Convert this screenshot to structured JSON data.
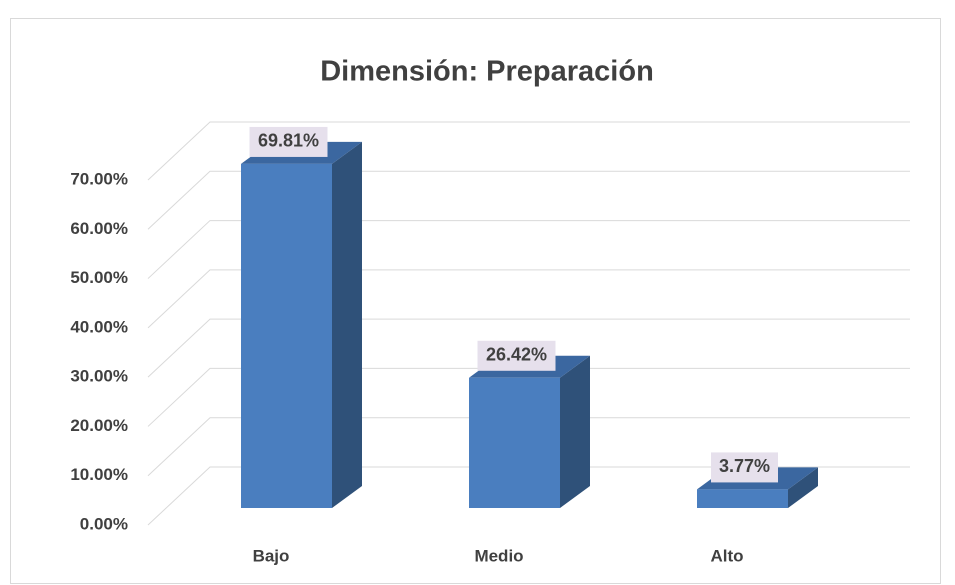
{
  "chart_data": {
    "type": "bar3d",
    "title": "Dimensión: Preparación",
    "categories": [
      "Bajo",
      "Medio",
      "Alto"
    ],
    "values": [
      69.81,
      26.42,
      3.77
    ],
    "value_labels": [
      "69.81%",
      "26.42%",
      "3.77%"
    ],
    "color": "#4a7ebf",
    "ylim": [
      0,
      70
    ],
    "yticks": [
      {
        "value": 0,
        "label": "0.00%"
      },
      {
        "value": 10,
        "label": "10.00%"
      },
      {
        "value": 20,
        "label": "20.00%"
      },
      {
        "value": 30,
        "label": "30.00%"
      },
      {
        "value": 40,
        "label": "40.00%"
      },
      {
        "value": 50,
        "label": "50.00%"
      },
      {
        "value": 60,
        "label": "60.00%"
      },
      {
        "value": 70,
        "label": "70.00%"
      }
    ],
    "grid": true
  }
}
